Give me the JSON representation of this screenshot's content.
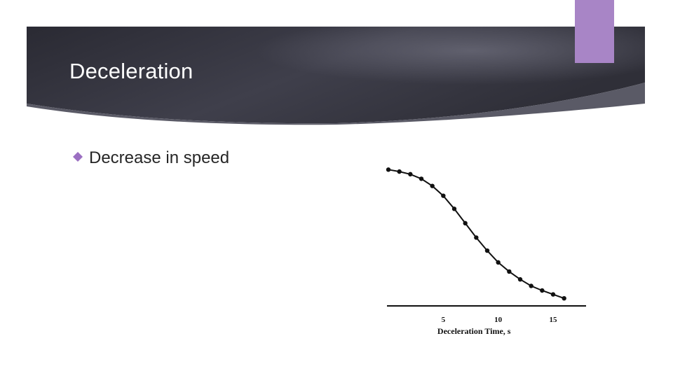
{
  "slide": {
    "title": "Deceleration",
    "bullets": [
      {
        "text": "Decrease in speed",
        "icon": "diamond-bullet-icon"
      }
    ]
  },
  "colors": {
    "banner_dark": "#2c2c36",
    "banner_light": "#575765",
    "accent": "#a885c6",
    "bullet": "#9b6fc2",
    "line": "#111111"
  },
  "chart_data": {
    "type": "line",
    "title": "",
    "xlabel": "Deceleration Time, s",
    "ylabel": "",
    "xlim": [
      0,
      18
    ],
    "ylim": [
      0,
      1.05
    ],
    "xticks": [
      5,
      10,
      15
    ],
    "grid": false,
    "legend": "none",
    "series": [
      {
        "x": [
          0,
          1,
          2,
          3,
          4,
          5,
          6,
          7,
          8,
          9,
          10,
          11,
          12,
          13,
          14,
          15,
          16
        ],
        "y": [
          1.0,
          0.985,
          0.965,
          0.93,
          0.875,
          0.8,
          0.7,
          0.59,
          0.48,
          0.38,
          0.29,
          0.22,
          0.16,
          0.11,
          0.075,
          0.045,
          0.015
        ]
      }
    ]
  }
}
